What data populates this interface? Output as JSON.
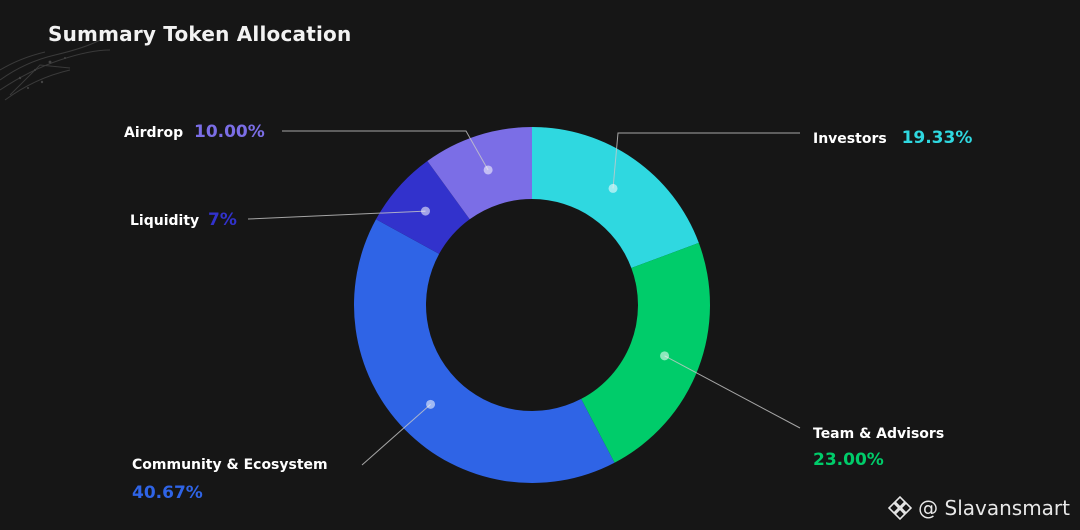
{
  "header": {
    "title": "Summary Token Allocation"
  },
  "watermark": {
    "text": "@ Slavansmart",
    "icon": "binance-diamond-icon"
  },
  "chart_data": {
    "type": "pie",
    "donut": true,
    "title": "Summary Token Allocation",
    "slices": [
      {
        "label": "Investors",
        "value": 19.33,
        "display": "19.33%",
        "color": "#2fd8e0"
      },
      {
        "label": "Team & Advisors",
        "value": 23.0,
        "display": "23.00%",
        "color": "#00cc6a"
      },
      {
        "label": "Community & Ecosystem",
        "value": 40.67,
        "display": "40.67%",
        "color": "#2f64e6"
      },
      {
        "label": "Liquidity",
        "value": 7,
        "display": "7%",
        "color": "#3232cc"
      },
      {
        "label": "Airdrop",
        "value": 10.0,
        "display": "10.00%",
        "color": "#7b6ee6"
      }
    ]
  }
}
